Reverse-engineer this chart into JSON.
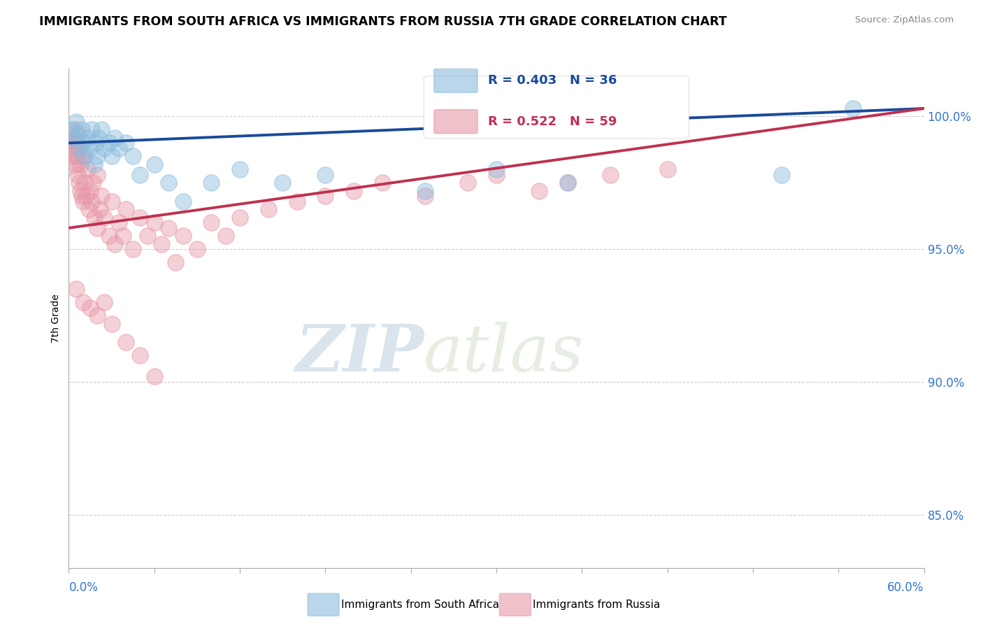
{
  "title": "IMMIGRANTS FROM SOUTH AFRICA VS IMMIGRANTS FROM RUSSIA 7TH GRADE CORRELATION CHART",
  "source": "Source: ZipAtlas.com",
  "ylabel": "7th Grade",
  "right_yticks": [
    85.0,
    90.0,
    95.0,
    100.0
  ],
  "right_yticklabels": [
    "85.0%",
    "90.0%",
    "95.0%",
    "100.0%"
  ],
  "blue_R": 0.403,
  "blue_N": 36,
  "pink_R": 0.522,
  "pink_N": 59,
  "blue_color": "#8bbcdc",
  "pink_color": "#e898a8",
  "blue_line_color": "#1a4a9a",
  "pink_line_color": "#c03050",
  "legend_label_blue": "Immigrants from South Africa",
  "legend_label_pink": "Immigrants from Russia",
  "watermark_ZIP": "ZIP",
  "watermark_atlas": "atlas",
  "blue_line_x0": 0.0,
  "blue_line_y0": 99.0,
  "blue_line_x1": 60.0,
  "blue_line_y1": 100.3,
  "pink_line_x0": 0.0,
  "pink_line_y0": 95.8,
  "pink_line_x1": 60.0,
  "pink_line_y1": 100.3,
  "blue_points_x": [
    0.2,
    0.4,
    0.5,
    0.6,
    0.7,
    0.9,
    1.0,
    1.1,
    1.3,
    1.5,
    1.6,
    1.8,
    1.9,
    2.0,
    2.1,
    2.3,
    2.5,
    2.8,
    3.0,
    3.2,
    3.5,
    4.0,
    4.5,
    5.0,
    6.0,
    7.0,
    8.0,
    10.0,
    12.0,
    15.0,
    18.0,
    25.0,
    30.0,
    35.0,
    50.0,
    55.0
  ],
  "blue_points_y": [
    99.5,
    99.2,
    99.8,
    99.3,
    98.8,
    99.5,
    99.0,
    98.5,
    99.2,
    98.8,
    99.5,
    98.2,
    99.0,
    98.5,
    99.2,
    99.5,
    98.8,
    99.0,
    98.5,
    99.2,
    98.8,
    99.0,
    98.5,
    97.8,
    98.2,
    97.5,
    96.8,
    97.5,
    98.0,
    97.5,
    97.8,
    97.2,
    98.0,
    97.5,
    97.8,
    100.3
  ],
  "pink_points_x": [
    0.1,
    0.2,
    0.3,
    0.4,
    0.4,
    0.5,
    0.5,
    0.6,
    0.6,
    0.7,
    0.7,
    0.8,
    0.8,
    0.9,
    1.0,
    1.0,
    1.1,
    1.2,
    1.3,
    1.4,
    1.5,
    1.6,
    1.7,
    1.8,
    2.0,
    2.0,
    2.2,
    2.3,
    2.5,
    2.8,
    3.0,
    3.2,
    3.5,
    3.8,
    4.0,
    4.5,
    5.0,
    5.5,
    6.0,
    6.5,
    7.0,
    7.5,
    8.0,
    9.0,
    10.0,
    11.0,
    12.0,
    14.0,
    16.0,
    18.0,
    20.0,
    22.0,
    25.0,
    28.0,
    30.0,
    33.0,
    35.0,
    38.0,
    42.0
  ],
  "pink_points_y": [
    99.0,
    98.5,
    99.2,
    98.8,
    99.5,
    98.2,
    99.0,
    97.8,
    98.5,
    97.5,
    98.8,
    97.2,
    98.2,
    97.0,
    98.5,
    96.8,
    97.5,
    97.0,
    98.0,
    96.5,
    97.2,
    96.8,
    97.5,
    96.2,
    97.8,
    95.8,
    96.5,
    97.0,
    96.2,
    95.5,
    96.8,
    95.2,
    96.0,
    95.5,
    96.5,
    95.0,
    96.2,
    95.5,
    96.0,
    95.2,
    95.8,
    94.5,
    95.5,
    95.0,
    96.0,
    95.5,
    96.2,
    96.5,
    96.8,
    97.0,
    97.2,
    97.5,
    97.0,
    97.5,
    97.8,
    97.2,
    97.5,
    97.8,
    98.0
  ],
  "large_blue_x": [
    0.15
  ],
  "large_blue_y": [
    99.0
  ],
  "large_pink_x": [
    0.15
  ],
  "large_pink_y": [
    98.5
  ],
  "pink_outlier_x": [
    0.5,
    1.0,
    1.5,
    2.0,
    2.5,
    3.0,
    4.0,
    5.0,
    6.0
  ],
  "pink_outlier_y": [
    93.5,
    93.0,
    92.8,
    92.5,
    93.0,
    92.2,
    91.5,
    91.0,
    90.2
  ],
  "xmin": 0.0,
  "xmax": 60.0,
  "ymin": 83.0,
  "ymax": 101.8
}
